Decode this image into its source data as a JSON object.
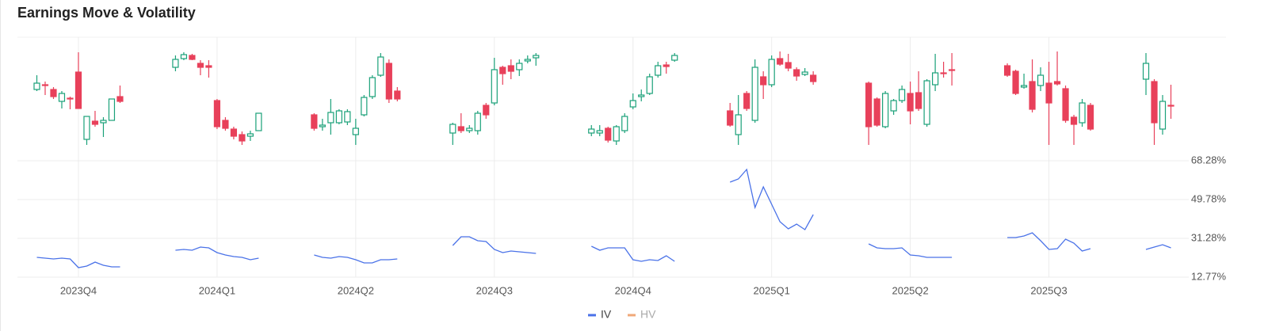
{
  "chart_data": {
    "type": "candlestick",
    "title": "Earnings Move & Volatility",
    "xlim": [
      -0.44,
      7.98
    ],
    "xticks": [
      {
        "value": 0,
        "label": "2023Q4"
      },
      {
        "value": 1,
        "label": "2024Q1"
      },
      {
        "value": 2,
        "label": "2024Q2"
      },
      {
        "value": 3,
        "label": "2024Q3"
      },
      {
        "value": 4,
        "label": "2024Q4"
      },
      {
        "value": 5,
        "label": "2025Q1"
      },
      {
        "value": 6,
        "label": "2025Q2"
      },
      {
        "value": 7,
        "label": "2025Q3"
      }
    ],
    "candle_ylim": [
      0,
      150
    ],
    "ylim": [
      12.77,
      68.28
    ],
    "yticks": [
      {
        "value": 12.77,
        "label": "12.77%"
      },
      {
        "value": 31.28,
        "label": "31.28%"
      },
      {
        "value": 49.78,
        "label": "49.78%"
      },
      {
        "value": 68.28,
        "label": "68.28%"
      }
    ],
    "up_color": "#1aa179",
    "down_color": "#e8405a",
    "x": [
      -0.3,
      -0.24,
      -0.18,
      -0.12,
      -0.06,
      0,
      0.06,
      0.12,
      0.18,
      0.24,
      0.3,
      0.7,
      0.76,
      0.82,
      0.88,
      0.94,
      1,
      1.06,
      1.12,
      1.18,
      1.24,
      1.3,
      1.7,
      1.76,
      1.82,
      1.88,
      1.94,
      2,
      2.06,
      2.12,
      2.18,
      2.24,
      2.3,
      2.7,
      2.76,
      2.82,
      2.88,
      2.94,
      3,
      3.06,
      3.12,
      3.18,
      3.24,
      3.3,
      3.7,
      3.76,
      3.82,
      3.88,
      3.94,
      4,
      4.06,
      4.12,
      4.18,
      4.24,
      4.3,
      4.7,
      4.76,
      4.82,
      4.88,
      4.94,
      5,
      5.06,
      5.12,
      5.18,
      5.24,
      5.3,
      5.7,
      5.76,
      5.82,
      5.88,
      5.94,
      6,
      6.06,
      6.12,
      6.18,
      6.24,
      6.3,
      6.7,
      6.76,
      6.82,
      6.88,
      6.94,
      7,
      7.06,
      7.12,
      7.18,
      7.24,
      7.3,
      7.7,
      7.76,
      7.82,
      7.88
    ],
    "open": [
      87,
      93,
      87,
      72,
      76,
      109,
      24,
      47,
      45,
      48,
      78,
      115,
      126,
      130,
      120,
      117,
      73,
      48,
      37,
      30,
      28,
      35,
      55,
      40,
      45,
      45,
      46,
      30,
      55,
      78,
      105,
      120,
      85,
      32,
      40,
      35,
      35,
      67,
      70,
      115,
      117,
      112,
      123,
      127,
      32,
      32,
      38,
      22,
      35,
      65,
      78,
      82,
      105,
      118,
      124,
      60,
      30,
      82,
      48,
      103,
      93,
      126,
      121,
      112,
      106,
      105,
      95,
      75,
      40,
      60,
      73,
      82,
      83,
      43,
      93,
      108,
      112,
      117,
      110,
      90,
      97,
      92,
      95,
      97,
      88,
      52,
      45,
      67,
      100,
      97,
      37,
      67
    ],
    "high": [
      105,
      97,
      90,
      85,
      78,
      134,
      53,
      60,
      52,
      75,
      92,
      130,
      134,
      132,
      124,
      124,
      75,
      52,
      40,
      34,
      35,
      57,
      57,
      50,
      75,
      62,
      62,
      50,
      80,
      105,
      133,
      125,
      90,
      45,
      57,
      42,
      60,
      70,
      127,
      117,
      125,
      125,
      130,
      133,
      42,
      42,
      40,
      42,
      57,
      82,
      87,
      107,
      122,
      122,
      133,
      70,
      80,
      85,
      125,
      110,
      130,
      135,
      132,
      115,
      114,
      110,
      97,
      77,
      85,
      75,
      92,
      97,
      110,
      100,
      132,
      122,
      133,
      120,
      112,
      107,
      125,
      115,
      122,
      135,
      92,
      55,
      75,
      70,
      133,
      100,
      80,
      93
    ],
    "low": [
      85,
      80,
      75,
      63,
      62,
      63,
      17,
      40,
      27,
      48,
      70,
      110,
      124,
      124,
      105,
      102,
      37,
      35,
      24,
      17,
      22,
      35,
      35,
      35,
      30,
      43,
      42,
      17,
      53,
      75,
      103,
      70,
      72,
      17,
      32,
      32,
      30,
      50,
      67,
      93,
      100,
      104,
      120,
      117,
      28,
      28,
      20,
      17,
      32,
      62,
      72,
      80,
      102,
      107,
      122,
      40,
      17,
      60,
      45,
      75,
      90,
      117,
      110,
      98,
      104,
      93,
      17,
      40,
      38,
      55,
      70,
      43,
      60,
      40,
      85,
      102,
      92,
      103,
      80,
      88,
      58,
      85,
      17,
      92,
      45,
      17,
      40,
      35,
      80,
      17,
      30,
      50
    ],
    "close": [
      95,
      92,
      78,
      82,
      75,
      63,
      53,
      43,
      48,
      75,
      72,
      125,
      131,
      125,
      115,
      115,
      40,
      38,
      28,
      22,
      31,
      57,
      38,
      42,
      58,
      60,
      59,
      38,
      77,
      102,
      128,
      75,
      75,
      43,
      35,
      38,
      57,
      55,
      112,
      107,
      110,
      120,
      125,
      130,
      37,
      35,
      23,
      40,
      53,
      73,
      80,
      103,
      117,
      116,
      130,
      42,
      55,
      63,
      115,
      93,
      125,
      119,
      114,
      104,
      109,
      97,
      40,
      42,
      82,
      73,
      87,
      60,
      63,
      98,
      108,
      107,
      111,
      105,
      82,
      92,
      62,
      105,
      70,
      94,
      48,
      43,
      70,
      37,
      120,
      45,
      72,
      66
    ],
    "series": [
      {
        "name": "IV",
        "color": "#4a72e8",
        "values": [
          22.21,
          21.83,
          21.46,
          21.83,
          21.46,
          17.3,
          18.06,
          19.95,
          18.44,
          17.68,
          17.68,
          25.61,
          25.99,
          25.61,
          27.12,
          26.74,
          24.48,
          23.34,
          22.59,
          22.21,
          21.08,
          21.83,
          23.34,
          22.21,
          21.83,
          22.59,
          22.21,
          21.08,
          19.57,
          19.57,
          21.08,
          21.08,
          21.46,
          27.88,
          32.03,
          32.03,
          30.14,
          29.76,
          25.99,
          24.48,
          25.23,
          24.85,
          24.48,
          24.1,
          27.5,
          25.61,
          26.74,
          26.74,
          26.74,
          21.08,
          20.32,
          21.08,
          20.7,
          22.97,
          20.32,
          58.09,
          59.6,
          64.13,
          46.0,
          55.82,
          47.51,
          39.21,
          35.81,
          38.07,
          35.43,
          42.6,
          28.63,
          26.74,
          26.37,
          26.37,
          26.74,
          23.34,
          22.97,
          22.21,
          22.21,
          22.21,
          22.21,
          31.65,
          31.65,
          32.41,
          33.92,
          30.14,
          25.99,
          26.37,
          30.9,
          29.01,
          25.23,
          26.37,
          25.99,
          27.12,
          28.25,
          26.74
        ]
      },
      {
        "name": "HV",
        "color": "#f0a878",
        "visible": false
      }
    ]
  }
}
